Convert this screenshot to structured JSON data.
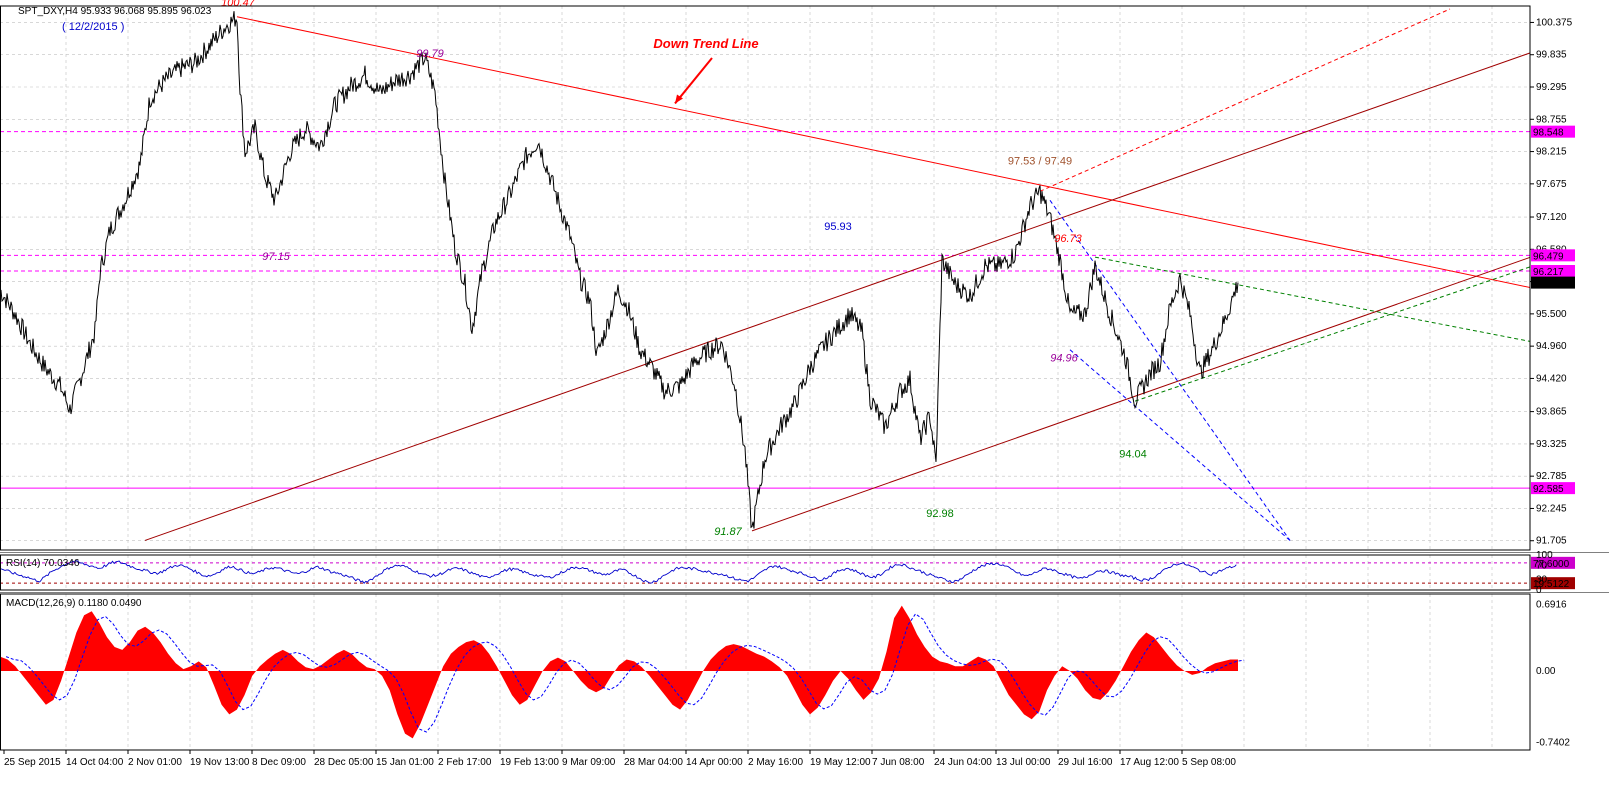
{
  "chart_data": {
    "type": "line",
    "panels": {
      "price": {
        "header": "SPT_DXY,H4  95.933 96.068 95.895 96.023",
        "date_note": "( 12/2/2015 )",
        "y_range": [
          91.55,
          100.65
        ],
        "y_ticks": [
          "100.375",
          "99.835",
          "99.295",
          "98.755",
          "98.215",
          "97.675",
          "97.120",
          "96.580",
          "96.040",
          "95.500",
          "94.960",
          "94.420",
          "93.865",
          "93.325",
          "92.785",
          "92.245",
          "91.705"
        ],
        "current_price": "96.023",
        "series": [
          {
            "type": "line",
            "points": [
              [
                0,
                95.9
              ],
              [
                15,
                95.5
              ],
              [
                30,
                95.0
              ],
              [
                45,
                94.6
              ],
              [
                60,
                94.3
              ],
              [
                70,
                93.9
              ],
              [
                80,
                94.4
              ],
              [
                95,
                95.2
              ],
              [
                100,
                96.2
              ],
              [
                110,
                96.9
              ],
              [
                125,
                97.4
              ],
              [
                140,
                98.0
              ],
              [
                150,
                99.1
              ],
              [
                165,
                99.4
              ],
              [
                180,
                99.6
              ],
              [
                195,
                99.7
              ],
              [
                210,
                100.0
              ],
              [
                225,
                100.3
              ],
              [
                237,
                100.47
              ],
              [
                240,
                99.3
              ],
              [
                245,
                98.2
              ],
              [
                255,
                98.6
              ],
              [
                265,
                97.8
              ],
              [
                275,
                97.4
              ],
              [
                290,
                98.2
              ],
              [
                305,
                98.6
              ],
              [
                320,
                98.3
              ],
              [
                335,
                99.0
              ],
              [
                350,
                99.3
              ],
              [
                365,
                99.5
              ],
              [
                380,
                99.2
              ],
              [
                395,
                99.4
              ],
              [
                410,
                99.5
              ],
              [
                425,
                99.79
              ],
              [
                435,
                99.2
              ],
              [
                445,
                97.7
              ],
              [
                455,
                96.6
              ],
              [
                465,
                96.0
              ],
              [
                472,
                95.25
              ],
              [
                482,
                96.2
              ],
              [
                495,
                97.0
              ],
              [
                510,
                97.5
              ],
              [
                525,
                98.1
              ],
              [
                538,
                98.4
              ],
              [
                550,
                97.8
              ],
              [
                560,
                97.3
              ],
              [
                570,
                96.8
              ],
              [
                580,
                96.1
              ],
              [
                590,
                95.7
              ],
              [
                597,
                94.8
              ],
              [
                607,
                95.3
              ],
              [
                618,
                95.9
              ],
              [
                628,
                95.6
              ],
              [
                640,
                94.9
              ],
              [
                652,
                94.6
              ],
              [
                665,
                94.2
              ],
              [
                680,
                94.3
              ],
              [
                695,
                94.7
              ],
              [
                710,
                94.9
              ],
              [
                722,
                95.0
              ],
              [
                735,
                94.3
              ],
              [
                745,
                93.2
              ],
              [
                752,
                91.87
              ],
              [
                765,
                93.1
              ],
              [
                780,
                93.6
              ],
              [
                795,
                94.0
              ],
              [
                810,
                94.6
              ],
              [
                825,
                95.0
              ],
              [
                840,
                95.3
              ],
              [
                850,
                95.5
              ],
              [
                862,
                95.2
              ],
              [
                870,
                94.1
              ],
              [
                885,
                93.6
              ],
              [
                900,
                94.2
              ],
              [
                910,
                94.4
              ],
              [
                920,
                93.4
              ],
              [
                930,
                93.8
              ],
              [
                936,
                92.98
              ],
              [
                942,
                96.4
              ],
              [
                955,
                96.0
              ],
              [
                970,
                95.8
              ],
              [
                985,
                96.3
              ],
              [
                1000,
                96.3
              ],
              [
                1015,
                96.5
              ],
              [
                1030,
                97.3
              ],
              [
                1040,
                97.55
              ],
              [
                1050,
                97.1
              ],
              [
                1060,
                96.4
              ],
              [
                1070,
                95.5
              ],
              [
                1085,
                95.5
              ],
              [
                1095,
                96.3
              ],
              [
                1110,
                95.5
              ],
              [
                1125,
                94.8
              ],
              [
                1135,
                94.04
              ],
              [
                1150,
                94.5
              ],
              [
                1160,
                94.7
              ],
              [
                1170,
                95.6
              ],
              [
                1180,
                96.1
              ],
              [
                1190,
                95.5
              ],
              [
                1200,
                94.5
              ],
              [
                1212,
                94.9
              ],
              [
                1225,
                95.4
              ],
              [
                1238,
                96.023
              ]
            ]
          }
        ],
        "horizontal_levels": [
          {
            "value": "98.548",
            "color": "#ff00ff",
            "style": "dashed"
          },
          {
            "value": "96.479",
            "color": "#ff00ff",
            "style": "dashed"
          },
          {
            "value": "96.217",
            "color": "#ff00ff",
            "style": "dashed"
          },
          {
            "value": "92.585",
            "color": "#ff00ff",
            "style": "solid"
          }
        ],
        "trend_lines": [
          {
            "from": [
              237,
              100.47
            ],
            "to": [
              1536,
              95.92
            ],
            "color": "#ff0000",
            "style": "solid"
          },
          {
            "from": [
              145,
              91.71
            ],
            "to": [
              1536,
              99.9
            ],
            "color": "#a00000",
            "style": "solid"
          },
          {
            "from": [
              752,
              91.87
            ],
            "to": [
              1536,
              96.48
            ],
            "color": "#a00000",
            "style": "solid"
          },
          {
            "from": [
              1040,
              97.55
            ],
            "to": [
              1450,
              100.6
            ],
            "color": "#ff0000",
            "style": "dashed"
          },
          {
            "from": [
              1135,
              94.04
            ],
            "to": [
              1536,
              96.32
            ],
            "color": "#008000",
            "style": "dashed"
          },
          {
            "from": [
              1095,
              96.45
            ],
            "to": [
              1536,
              95.02
            ],
            "color": "#008000",
            "style": "dashed"
          },
          {
            "from": [
              1050,
              97.4
            ],
            "to": [
              1290,
              91.71
            ],
            "color": "#0000ff",
            "style": "dashed"
          },
          {
            "from": [
              1070,
              94.9
            ],
            "to": [
              1290,
              91.71
            ],
            "color": "#0000ff",
            "style": "dashed"
          }
        ],
        "annotations": [
          {
            "text": "100.47",
            "at": [
              238,
              100.65
            ],
            "color": "#ff0000",
            "italic": true
          },
          {
            "text": "99.79",
            "at": [
              430,
              99.8
            ],
            "color": "#990099",
            "italic": true
          },
          {
            "text": "Down Trend Line",
            "at": [
              706,
              99.95
            ],
            "color": "#ff0000",
            "italic": true,
            "bold": true
          },
          {
            "text": "97.53 / 97.49",
            "at": [
              1040,
              98.0
            ],
            "color": "#a0522d",
            "italic": false
          },
          {
            "text": "95.93",
            "at": [
              838,
              96.9
            ],
            "color": "#0000cc",
            "italic": false
          },
          {
            "text": "97.15",
            "at": [
              276,
              96.4
            ],
            "color": "#990099",
            "italic": true
          },
          {
            "text": "96.73",
            "at": [
              1068,
              96.7
            ],
            "color": "#ff0000",
            "italic": true
          },
          {
            "text": "94.96",
            "at": [
              1064,
              94.7
            ],
            "color": "#990099",
            "italic": true
          },
          {
            "text": "94.04",
            "at": [
              1133,
              93.1
            ],
            "color": "#008000",
            "italic": false
          },
          {
            "text": "92.98",
            "at": [
              940,
              92.1
            ],
            "color": "#008000",
            "italic": false
          },
          {
            "text": "91.87",
            "at": [
              728,
              91.8
            ],
            "color": "#008000",
            "italic": true
          }
        ],
        "arrow": {
          "from": [
            712,
            99.78
          ],
          "to": [
            675,
            99.02
          ],
          "color": "#ff0000"
        }
      },
      "rsi": {
        "header": "RSI(14) 70.0346",
        "y_range": [
          0,
          100
        ],
        "y_ticks": [
          "100",
          "70",
          "30",
          "0"
        ],
        "levels": [
          {
            "value": "77.6000",
            "color": "#cc00cc"
          },
          {
            "value": "19.5122",
            "color": "#a00000"
          }
        ],
        "values": [
          62,
          55,
          48,
          42,
          38,
          30,
          26,
          40,
          55,
          65,
          75,
          82,
          78,
          72,
          68,
          62,
          70,
          78,
          80,
          74,
          66,
          60,
          55,
          50,
          48,
          58,
          66,
          72,
          66,
          58,
          48,
          40,
          42,
          52,
          62,
          68,
          60,
          52,
          46,
          50,
          58,
          64,
          62,
          56,
          50,
          46,
          52,
          60,
          66,
          60,
          52,
          48,
          42,
          36,
          28,
          22,
          30,
          42,
          55,
          66,
          70,
          68,
          60,
          52,
          44,
          40,
          42,
          50,
          58,
          62,
          58,
          50,
          44,
          36,
          38,
          46,
          54,
          60,
          58,
          52,
          46,
          42,
          38,
          36,
          42,
          52,
          60,
          66,
          62,
          56,
          50,
          44,
          46,
          54,
          58,
          50,
          40,
          30,
          20,
          26,
          38,
          50,
          60,
          64,
          62,
          60,
          56,
          52,
          48,
          46,
          40,
          32,
          28,
          26,
          36,
          50,
          62,
          70,
          64,
          58,
          54,
          48,
          42,
          34,
          30,
          36,
          48,
          58,
          62,
          56,
          48,
          40,
          36,
          44,
          58,
          70,
          74,
          68,
          60,
          54,
          46,
          40,
          34,
          28,
          24,
          30,
          42,
          56,
          66,
          72,
          76,
          74,
          66,
          56,
          46,
          40,
          46,
          56,
          62,
          58,
          50,
          44,
          38,
          32,
          36,
          48,
          56,
          54,
          50,
          44,
          40,
          36,
          30,
          28,
          34,
          46,
          58,
          70,
          76,
          74,
          66,
          58,
          50,
          46,
          52,
          60,
          66,
          70
        ]
      },
      "macd": {
        "header": "MACD(12,26,9) 0.1180 0.0490",
        "y_range": [
          -0.82,
          0.8
        ],
        "y_ticks": [
          "0.6916",
          "0.00",
          "-0.7402"
        ],
        "values": [
          0.15,
          0.12,
          0.05,
          -0.05,
          -0.15,
          -0.25,
          -0.35,
          -0.3,
          -0.1,
          0.15,
          0.4,
          0.58,
          0.62,
          0.5,
          0.35,
          0.25,
          0.22,
          0.3,
          0.42,
          0.46,
          0.4,
          0.3,
          0.18,
          0.08,
          0.02,
          0.05,
          0.1,
          0.04,
          -0.15,
          -0.35,
          -0.45,
          -0.4,
          -0.25,
          -0.05,
          0.05,
          0.12,
          0.18,
          0.22,
          0.18,
          0.1,
          0.04,
          0.02,
          0.06,
          0.12,
          0.18,
          0.22,
          0.18,
          0.1,
          0.04,
          0.02,
          -0.05,
          -0.2,
          -0.45,
          -0.65,
          -0.7,
          -0.55,
          -0.35,
          -0.15,
          0.05,
          0.18,
          0.25,
          0.3,
          0.32,
          0.28,
          0.18,
          0.05,
          -0.1,
          -0.25,
          -0.35,
          -0.3,
          -0.15,
          0.0,
          0.1,
          0.14,
          0.1,
          0.0,
          -0.1,
          -0.18,
          -0.22,
          -0.18,
          -0.05,
          0.06,
          0.12,
          0.1,
          0.04,
          -0.05,
          -0.15,
          -0.25,
          -0.35,
          -0.4,
          -0.3,
          -0.15,
          0.0,
          0.12,
          0.2,
          0.26,
          0.28,
          0.26,
          0.22,
          0.18,
          0.15,
          0.1,
          0.04,
          -0.05,
          -0.2,
          -0.35,
          -0.45,
          -0.38,
          -0.25,
          -0.1,
          0.0,
          -0.08,
          -0.2,
          -0.3,
          -0.22,
          -0.08,
          0.2,
          0.55,
          0.68,
          0.55,
          0.38,
          0.25,
          0.15,
          0.1,
          0.08,
          0.05,
          0.05,
          0.1,
          0.15,
          0.12,
          0.05,
          -0.1,
          -0.25,
          -0.35,
          -0.45,
          -0.5,
          -0.42,
          -0.2,
          -0.05,
          0.05,
          0.0,
          -0.08,
          -0.2,
          -0.28,
          -0.3,
          -0.22,
          -0.1,
          0.05,
          0.2,
          0.32,
          0.4,
          0.35,
          0.25,
          0.15,
          0.06,
          0.0,
          -0.04,
          -0.02,
          0.04,
          0.08,
          0.1,
          0.12,
          0.12
        ]
      }
    },
    "x_axis_labels": [
      "25 Sep 2015",
      "14 Oct 04:00",
      "2 Nov 01:00",
      "19 Nov 13:00",
      "8 Dec 09:00",
      "28 Dec 05:00",
      "15 Jan 01:00",
      "2 Feb 17:00",
      "19 Feb 13:00",
      "9 Mar 09:00",
      "28 Mar 04:00",
      "14 Apr 00:00",
      "2 May 16:00",
      "19 May 12:00",
      "7 Jun 08:00",
      "24 Jun 04:00",
      "13 Jul 00:00",
      "29 Jul 16:00",
      "17 Aug 12:00",
      "5 Sep 08:00"
    ],
    "colors": {
      "price": "#000000",
      "rsi": "#0000cc",
      "macd_fill": "#ff0000",
      "macd_signal": "#0000ff",
      "grid": "#c0c0c0",
      "price_box": "#ff00ff"
    }
  }
}
